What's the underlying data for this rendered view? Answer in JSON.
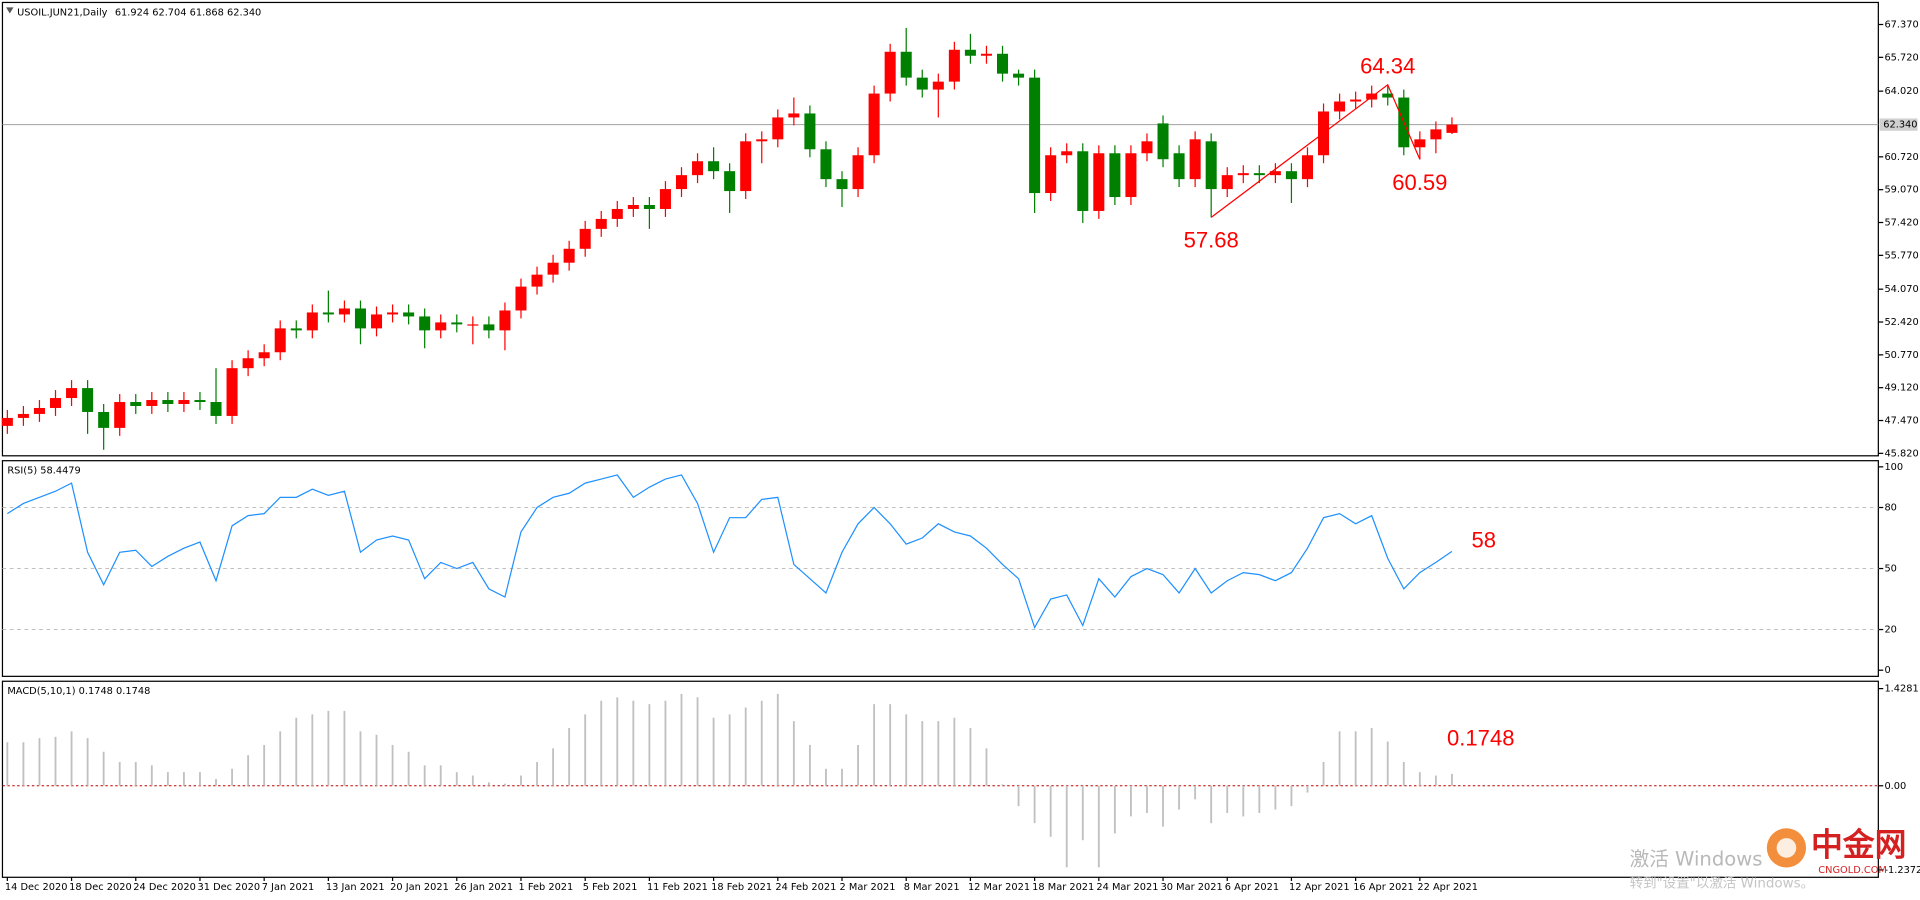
{
  "chart_data": [
    {
      "type": "candlestick",
      "title": "USOIL.JUN21,Daily",
      "subtitle": "61.924 62.704 61.868 62.340",
      "categories": [
        "14 Dec 2020",
        null,
        null,
        null,
        "18 Dec 2020",
        null,
        null,
        null,
        "24 Dec 2020",
        null,
        null,
        null,
        "31 Dec 2020",
        null,
        null,
        null,
        "7 Jan 2021",
        null,
        null,
        null,
        "13 Jan 2021",
        null,
        null,
        null,
        "20 Jan 2021",
        null,
        null,
        null,
        "26 Jan 2021",
        null,
        null,
        null,
        "1 Feb 2021",
        null,
        null,
        null,
        "5 Feb 2021",
        null,
        null,
        null,
        "11 Feb 2021",
        null,
        null,
        null,
        "18 Feb 2021",
        null,
        null,
        null,
        "24 Feb 2021",
        null,
        null,
        null,
        "2 Mar 2021",
        null,
        null,
        null,
        "8 Mar 2021",
        null,
        null,
        null,
        "12 Mar 2021",
        null,
        null,
        null,
        "18 Mar 2021",
        null,
        null,
        null,
        "24 Mar 2021",
        null,
        null,
        null,
        "30 Mar 2021",
        null,
        null,
        null,
        "6 Apr 2021",
        null,
        null,
        null,
        "12 Apr 2021",
        null,
        null,
        null,
        "16 Apr 2021",
        null,
        null,
        null,
        "22 Apr 2021",
        null,
        null
      ],
      "open": [
        47.2,
        47.6,
        47.8,
        48.1,
        48.6,
        49.1,
        47.9,
        47.1,
        48.4,
        48.2,
        48.5,
        48.3,
        48.5,
        48.4,
        47.7,
        50.1,
        50.6,
        50.9,
        52.1,
        52.0,
        52.9,
        52.8,
        53.1,
        52.1,
        52.8,
        52.9,
        52.7,
        52.0,
        52.4,
        52.3,
        52.3,
        52.0,
        53.0,
        54.2,
        54.8,
        55.4,
        56.1,
        57.1,
        57.6,
        58.1,
        58.3,
        58.1,
        59.1,
        59.8,
        60.5,
        60.0,
        59.0,
        61.5,
        61.6,
        62.7,
        62.9,
        61.1,
        59.6,
        59.1,
        60.8,
        63.9,
        66.0,
        64.7,
        64.1,
        64.5,
        66.1,
        65.8,
        65.9,
        64.9,
        64.7,
        58.9,
        60.8,
        61.0,
        58.0,
        60.9,
        58.7,
        60.9,
        62.4,
        60.9,
        59.6,
        61.5,
        59.1,
        59.8,
        59.9,
        59.8,
        60.0,
        59.6,
        60.8,
        63.0,
        63.5,
        63.6,
        63.9,
        63.7,
        61.2,
        61.6,
        61.924
      ],
      "high": [
        48.0,
        48.2,
        48.5,
        49.0,
        49.5,
        49.5,
        48.3,
        48.8,
        48.8,
        48.9,
        48.9,
        48.9,
        48.9,
        50.1,
        50.5,
        51.0,
        51.3,
        52.5,
        52.5,
        53.3,
        54.0,
        53.5,
        53.5,
        53.2,
        53.3,
        53.3,
        53.1,
        52.8,
        52.8,
        52.7,
        52.7,
        53.4,
        54.6,
        55.2,
        55.8,
        56.5,
        57.5,
        58.0,
        58.5,
        58.7,
        58.7,
        59.5,
        60.2,
        60.9,
        61.2,
        60.4,
        61.9,
        62.0,
        63.1,
        63.7,
        63.3,
        61.5,
        60.0,
        61.2,
        64.3,
        66.4,
        67.2,
        65.1,
        64.9,
        66.5,
        66.9,
        66.3,
        66.3,
        65.1,
        65.1,
        61.2,
        61.4,
        61.4,
        61.3,
        61.3,
        61.3,
        61.9,
        62.8,
        61.3,
        62.0,
        61.9,
        60.2,
        60.3,
        60.3,
        60.4,
        60.4,
        61.2,
        63.4,
        63.9,
        64.0,
        64.3,
        64.34,
        64.1,
        62.0,
        62.5,
        62.704
      ],
      "low": [
        46.8,
        47.2,
        47.4,
        47.7,
        48.2,
        46.8,
        46.0,
        46.7,
        47.8,
        47.8,
        47.9,
        47.9,
        48.0,
        47.3,
        47.3,
        49.7,
        50.2,
        50.5,
        51.6,
        51.6,
        52.4,
        52.4,
        51.3,
        51.7,
        52.4,
        52.3,
        51.1,
        51.6,
        51.9,
        51.3,
        51.6,
        51.0,
        52.6,
        53.8,
        54.4,
        55.0,
        55.7,
        56.7,
        57.2,
        57.7,
        57.1,
        57.7,
        58.7,
        59.4,
        59.6,
        57.9,
        58.6,
        60.4,
        61.2,
        62.3,
        60.7,
        59.2,
        58.2,
        58.7,
        60.4,
        63.5,
        64.3,
        63.7,
        62.7,
        64.1,
        65.4,
        65.4,
        64.5,
        64.3,
        57.9,
        58.5,
        60.4,
        57.4,
        57.6,
        58.3,
        58.3,
        60.5,
        60.2,
        59.2,
        59.2,
        57.68,
        58.7,
        59.4,
        59.4,
        59.4,
        58.4,
        59.2,
        60.4,
        62.6,
        63.1,
        63.2,
        63.3,
        60.8,
        60.59,
        60.9,
        61.868
      ],
      "close": [
        47.6,
        47.8,
        48.1,
        48.6,
        49.1,
        47.9,
        47.1,
        48.4,
        48.2,
        48.5,
        48.3,
        48.5,
        48.4,
        47.7,
        50.1,
        50.6,
        50.9,
        52.1,
        52.0,
        52.9,
        52.8,
        53.1,
        52.1,
        52.8,
        52.9,
        52.7,
        52.0,
        52.4,
        52.3,
        52.3,
        52.0,
        53.0,
        54.2,
        54.8,
        55.4,
        56.1,
        57.1,
        57.6,
        58.1,
        58.3,
        58.1,
        59.1,
        59.8,
        60.5,
        60.0,
        59.0,
        61.5,
        61.6,
        62.7,
        62.9,
        61.1,
        59.6,
        59.1,
        60.8,
        63.9,
        66.0,
        64.7,
        64.1,
        64.5,
        66.1,
        65.8,
        65.9,
        64.9,
        64.7,
        58.9,
        60.8,
        61.0,
        58.0,
        60.9,
        58.7,
        60.9,
        61.5,
        60.6,
        59.6,
        61.6,
        59.1,
        59.8,
        59.9,
        59.8,
        60.0,
        59.6,
        60.8,
        63.0,
        63.5,
        63.6,
        63.9,
        63.7,
        61.2,
        61.6,
        62.1,
        62.34
      ],
      "up_color": "#ff0000",
      "down_color": "#008000",
      "ylim": [
        45.82,
        67.37
      ],
      "yticks": [
        {
          "value": 67.37,
          "label": "67.370"
        },
        {
          "value": 65.72,
          "label": "65.720"
        },
        {
          "value": 64.02,
          "label": "64.020"
        },
        {
          "value": 60.72,
          "label": "60.720"
        },
        {
          "value": 59.07,
          "label": "59.070"
        },
        {
          "value": 57.42,
          "label": "57.420"
        },
        {
          "value": 55.77,
          "label": "55.770"
        },
        {
          "value": 54.07,
          "label": "54.070"
        },
        {
          "value": 52.42,
          "label": "52.420"
        },
        {
          "value": 50.77,
          "label": "50.770"
        },
        {
          "value": 49.12,
          "label": "49.120"
        },
        {
          "value": 47.47,
          "label": "47.470"
        },
        {
          "value": 45.82,
          "label": "45.820"
        }
      ],
      "current_price": {
        "value": 62.34,
        "label": "62.340"
      },
      "annotations": [
        {
          "label": "57.68",
          "value": 57.68
        },
        {
          "label": "64.34",
          "value": 64.34
        },
        {
          "label": "60.59",
          "value": 60.59
        }
      ],
      "grid": false
    },
    {
      "type": "line",
      "title": "RSI(5) 58.4479",
      "color": "#1e90ff",
      "values": [
        77,
        82,
        85,
        88,
        92,
        58,
        42,
        58,
        59,
        51,
        56,
        60,
        63,
        44,
        71,
        76,
        77,
        85,
        85,
        89,
        86,
        88,
        58,
        64,
        66,
        64,
        45,
        53,
        50,
        53,
        40,
        36,
        68,
        80,
        85,
        87,
        92,
        94,
        96,
        85,
        90,
        94,
        96,
        82,
        58,
        75,
        75,
        84,
        85,
        52,
        45,
        38,
        58,
        72,
        80,
        72,
        62,
        65,
        72,
        68,
        66,
        60,
        52,
        45,
        21,
        35,
        37,
        22,
        45,
        36,
        46,
        50,
        47,
        38,
        50,
        38,
        44,
        48,
        47,
        44,
        48,
        60,
        75,
        77,
        72,
        76,
        55,
        40,
        48,
        53,
        58.4479
      ],
      "ylim": [
        0,
        100
      ],
      "yticks": [
        100,
        80,
        50,
        20,
        0
      ],
      "grid": true,
      "annotations": [
        {
          "label": "58",
          "value": 58.4479
        }
      ]
    },
    {
      "type": "bar",
      "title": "MACD(5,10,1) 0.1748 0.1748",
      "color": "#c0c0c0",
      "baseline_color": "#c00000",
      "values": [
        0.64,
        0.64,
        0.7,
        0.72,
        0.8,
        0.7,
        0.5,
        0.35,
        0.35,
        0.3,
        0.2,
        0.2,
        0.2,
        0.1,
        0.25,
        0.45,
        0.6,
        0.8,
        1.0,
        1.05,
        1.1,
        1.1,
        0.8,
        0.75,
        0.6,
        0.5,
        0.3,
        0.3,
        0.2,
        0.15,
        0.05,
        0.03,
        0.15,
        0.35,
        0.55,
        0.85,
        1.05,
        1.25,
        1.3,
        1.25,
        1.2,
        1.25,
        1.35,
        1.3,
        1.0,
        1.05,
        1.15,
        1.25,
        1.35,
        0.95,
        0.6,
        0.25,
        0.25,
        0.6,
        1.2,
        1.2,
        1.05,
        0.95,
        0.95,
        1.0,
        0.85,
        0.55,
        0.02,
        -0.3,
        -0.55,
        -0.75,
        -1.2,
        -0.8,
        -1.2,
        -0.7,
        -0.45,
        -0.4,
        -0.6,
        -0.35,
        -0.2,
        -0.55,
        -0.4,
        -0.45,
        -0.4,
        -0.35,
        -0.3,
        -0.1,
        0.35,
        0.8,
        0.8,
        0.85,
        0.65,
        0.35,
        0.2,
        0.15,
        0.1748
      ],
      "ylim": [
        -1.2372,
        1.4281
      ],
      "yticks": [
        1.4281,
        {
          "value": 0,
          "label": "0.00"
        },
        -1.2372
      ],
      "grid": false,
      "annotations": [
        {
          "label": "0.1748",
          "value": 0.1748
        }
      ]
    }
  ],
  "watermark": {
    "line1": "激活 Windows",
    "line2": "转到\"设置\"以激活 Windows。"
  },
  "logo": {
    "name": "中金网",
    "site": "CNGOLD.COM"
  }
}
